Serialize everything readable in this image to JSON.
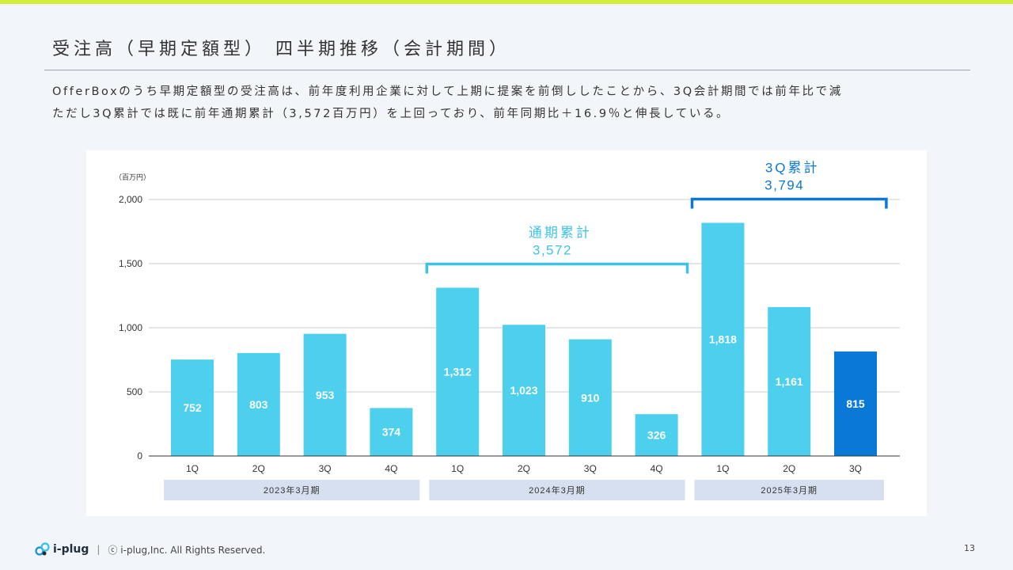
{
  "slide": {
    "title": "受注高（早期定額型） 四半期推移（会計期間）",
    "description_lines": [
      "OfferBoxのうち早期定額型の受注高は、前年度利用企業に対して上期に提案を前倒ししたことから、3Q会計期間では前年比で減",
      "ただし3Q累計では既に前年通期累計（3,572百万円）を上回っており、前年同期比＋16.9％と伸長している。"
    ]
  },
  "footer": {
    "logo_text": "i-plug",
    "separator": "|",
    "copyright": "ⓒ i-plug,Inc. All Rights Reserved.",
    "page_number": "13"
  },
  "colors": {
    "bar": "#4dcfee",
    "bar_highlight": "#0a78d7",
    "accent_top": "#d4ec3a",
    "annotation_light": "#3fc2e5",
    "annotation_dark": "#0a78d7",
    "year_band": "#d6e0f0"
  },
  "chart_data": {
    "type": "bar",
    "unit_label": "（百万円）",
    "ylim": [
      0,
      2000
    ],
    "yticks": [
      0,
      500,
      1000,
      1500,
      2000
    ],
    "ytick_labels": [
      "0",
      "500",
      "1,000",
      "1,500",
      "2,000"
    ],
    "categories": [
      "1Q",
      "2Q",
      "3Q",
      "4Q",
      "1Q",
      "2Q",
      "3Q",
      "4Q",
      "1Q",
      "2Q",
      "3Q"
    ],
    "values": [
      752,
      803,
      953,
      374,
      1312,
      1023,
      910,
      326,
      1818,
      1161,
      815
    ],
    "value_labels": [
      "752",
      "803",
      "953",
      "374",
      "1,312",
      "1,023",
      "910",
      "326",
      "1,818",
      "1,161",
      "815"
    ],
    "highlight_index": 10,
    "groups": [
      {
        "label": "2023年3月期",
        "start": 0,
        "end": 3
      },
      {
        "label": "2024年3月期",
        "start": 4,
        "end": 7
      },
      {
        "label": "2025年3月期",
        "start": 8,
        "end": 10
      }
    ],
    "annotations": [
      {
        "title": "通期累計",
        "value": "3,572",
        "start": 4,
        "end": 7,
        "color": "light"
      },
      {
        "title": "3Q累計",
        "value": "3,794",
        "start": 8,
        "end": 10,
        "color": "dark"
      }
    ],
    "grid": true
  }
}
